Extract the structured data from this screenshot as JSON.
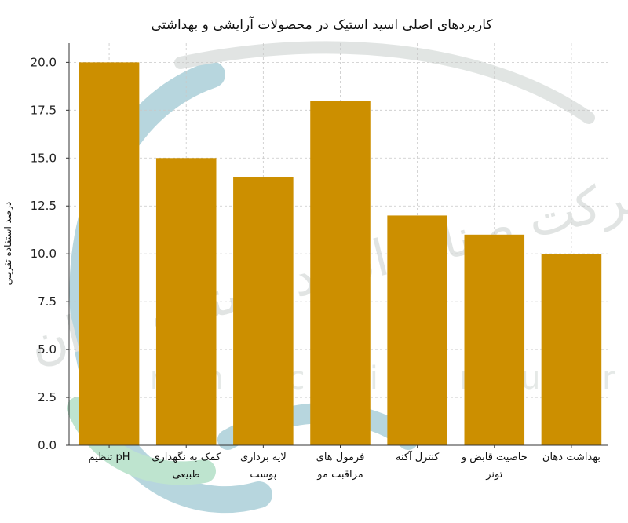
{
  "chart_data": {
    "type": "bar",
    "title": "کاربردهای اصلی اسید استیک در محصولات آرایشی و بهداشتی",
    "xlabel": "",
    "ylabel": "درصد استفاده تقریبی",
    "ylim": [
      0,
      21
    ],
    "yticks": [
      "0.0",
      "2.5",
      "5.0",
      "7.5",
      "10.0",
      "12.5",
      "15.0",
      "17.5",
      "20.0"
    ],
    "grid": true,
    "bar_color": "#cc8f00",
    "categories": [
      [
        "تنظیم pH"
      ],
      [
        "کمک به نگهداری",
        "طبیعی"
      ],
      [
        "لایه برداری",
        "پوست"
      ],
      [
        "فرمول های",
        "مراقبت مو"
      ],
      [
        "کنترل آکنه"
      ],
      [
        "خاصیت قابض و",
        "تونر"
      ],
      [
        "بهداشت دهان"
      ]
    ],
    "values": [
      20,
      15,
      14,
      18,
      12,
      11,
      10
    ]
  },
  "watermark": {
    "text": "Iran Acetic Industries Co",
    "script_text": "شرکت صنایع اسید استیک ایران",
    "colors": [
      "#9fc9d3",
      "#a9dcc0",
      "#d7dcda"
    ]
  }
}
